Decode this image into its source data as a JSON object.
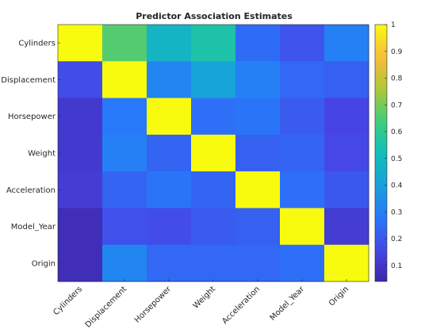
{
  "chart_data": {
    "type": "heatmap",
    "title": "Predictor Association Estimates",
    "variables": [
      "Cylinders",
      "Displacement",
      "Horsepower",
      "Weight",
      "Acceleration",
      "Model_Year",
      "Origin"
    ],
    "values": [
      [
        1.0,
        0.66,
        0.48,
        0.55,
        0.25,
        0.19,
        0.3
      ],
      [
        0.17,
        1.0,
        0.32,
        0.41,
        0.3,
        0.24,
        0.22
      ],
      [
        0.11,
        0.28,
        1.0,
        0.26,
        0.27,
        0.21,
        0.15
      ],
      [
        0.11,
        0.3,
        0.23,
        1.0,
        0.22,
        0.23,
        0.16
      ],
      [
        0.12,
        0.23,
        0.27,
        0.23,
        1.0,
        0.26,
        0.2
      ],
      [
        0.07,
        0.18,
        0.17,
        0.21,
        0.22,
        1.0,
        0.12
      ],
      [
        0.07,
        0.32,
        0.24,
        0.24,
        0.24,
        0.26,
        1.0
      ]
    ],
    "colorbar": {
      "colormap": "parula",
      "clim": [
        0.04,
        1
      ],
      "ticks": [
        "0.1",
        "0.2",
        "0.3",
        "0.4",
        "0.5",
        "0.6",
        "0.7",
        "0.8",
        "0.9",
        "1"
      ]
    },
    "xlabel": "",
    "ylabel": "",
    "grid": false
  }
}
